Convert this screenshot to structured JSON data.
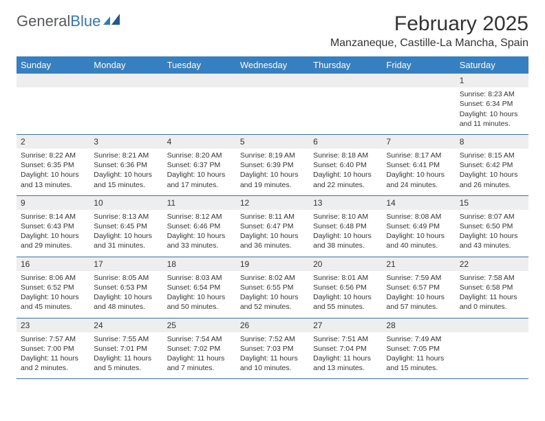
{
  "logo": {
    "word1": "General",
    "word2": "Blue"
  },
  "header": {
    "month_title": "February 2025",
    "location": "Manzaneque, Castille-La Mancha, Spain"
  },
  "colors": {
    "header_bg": "#3680c2",
    "header_text": "#ffffff",
    "daynum_bg": "#eeeeee",
    "row_border": "#3b6fa0",
    "body_text": "#333333",
    "logo_gray": "#56595c",
    "logo_blue": "#2f79bb"
  },
  "day_headers": [
    "Sunday",
    "Monday",
    "Tuesday",
    "Wednesday",
    "Thursday",
    "Friday",
    "Saturday"
  ],
  "labels": {
    "sunrise": "Sunrise:",
    "sunset": "Sunset:",
    "daylight": "Daylight:"
  },
  "weeks": [
    [
      {
        "empty": true
      },
      {
        "empty": true
      },
      {
        "empty": true
      },
      {
        "empty": true
      },
      {
        "empty": true
      },
      {
        "empty": true
      },
      {
        "num": "1",
        "sunrise": "8:23 AM",
        "sunset": "6:34 PM",
        "daylight": "10 hours and 11 minutes."
      }
    ],
    [
      {
        "num": "2",
        "sunrise": "8:22 AM",
        "sunset": "6:35 PM",
        "daylight": "10 hours and 13 minutes."
      },
      {
        "num": "3",
        "sunrise": "8:21 AM",
        "sunset": "6:36 PM",
        "daylight": "10 hours and 15 minutes."
      },
      {
        "num": "4",
        "sunrise": "8:20 AM",
        "sunset": "6:37 PM",
        "daylight": "10 hours and 17 minutes."
      },
      {
        "num": "5",
        "sunrise": "8:19 AM",
        "sunset": "6:39 PM",
        "daylight": "10 hours and 19 minutes."
      },
      {
        "num": "6",
        "sunrise": "8:18 AM",
        "sunset": "6:40 PM",
        "daylight": "10 hours and 22 minutes."
      },
      {
        "num": "7",
        "sunrise": "8:17 AM",
        "sunset": "6:41 PM",
        "daylight": "10 hours and 24 minutes."
      },
      {
        "num": "8",
        "sunrise": "8:15 AM",
        "sunset": "6:42 PM",
        "daylight": "10 hours and 26 minutes."
      }
    ],
    [
      {
        "num": "9",
        "sunrise": "8:14 AM",
        "sunset": "6:43 PM",
        "daylight": "10 hours and 29 minutes."
      },
      {
        "num": "10",
        "sunrise": "8:13 AM",
        "sunset": "6:45 PM",
        "daylight": "10 hours and 31 minutes."
      },
      {
        "num": "11",
        "sunrise": "8:12 AM",
        "sunset": "6:46 PM",
        "daylight": "10 hours and 33 minutes."
      },
      {
        "num": "12",
        "sunrise": "8:11 AM",
        "sunset": "6:47 PM",
        "daylight": "10 hours and 36 minutes."
      },
      {
        "num": "13",
        "sunrise": "8:10 AM",
        "sunset": "6:48 PM",
        "daylight": "10 hours and 38 minutes."
      },
      {
        "num": "14",
        "sunrise": "8:08 AM",
        "sunset": "6:49 PM",
        "daylight": "10 hours and 40 minutes."
      },
      {
        "num": "15",
        "sunrise": "8:07 AM",
        "sunset": "6:50 PM",
        "daylight": "10 hours and 43 minutes."
      }
    ],
    [
      {
        "num": "16",
        "sunrise": "8:06 AM",
        "sunset": "6:52 PM",
        "daylight": "10 hours and 45 minutes."
      },
      {
        "num": "17",
        "sunrise": "8:05 AM",
        "sunset": "6:53 PM",
        "daylight": "10 hours and 48 minutes."
      },
      {
        "num": "18",
        "sunrise": "8:03 AM",
        "sunset": "6:54 PM",
        "daylight": "10 hours and 50 minutes."
      },
      {
        "num": "19",
        "sunrise": "8:02 AM",
        "sunset": "6:55 PM",
        "daylight": "10 hours and 52 minutes."
      },
      {
        "num": "20",
        "sunrise": "8:01 AM",
        "sunset": "6:56 PM",
        "daylight": "10 hours and 55 minutes."
      },
      {
        "num": "21",
        "sunrise": "7:59 AM",
        "sunset": "6:57 PM",
        "daylight": "10 hours and 57 minutes."
      },
      {
        "num": "22",
        "sunrise": "7:58 AM",
        "sunset": "6:58 PM",
        "daylight": "11 hours and 0 minutes."
      }
    ],
    [
      {
        "num": "23",
        "sunrise": "7:57 AM",
        "sunset": "7:00 PM",
        "daylight": "11 hours and 2 minutes."
      },
      {
        "num": "24",
        "sunrise": "7:55 AM",
        "sunset": "7:01 PM",
        "daylight": "11 hours and 5 minutes."
      },
      {
        "num": "25",
        "sunrise": "7:54 AM",
        "sunset": "7:02 PM",
        "daylight": "11 hours and 7 minutes."
      },
      {
        "num": "26",
        "sunrise": "7:52 AM",
        "sunset": "7:03 PM",
        "daylight": "11 hours and 10 minutes."
      },
      {
        "num": "27",
        "sunrise": "7:51 AM",
        "sunset": "7:04 PM",
        "daylight": "11 hours and 13 minutes."
      },
      {
        "num": "28",
        "sunrise": "7:49 AM",
        "sunset": "7:05 PM",
        "daylight": "11 hours and 15 minutes."
      },
      {
        "empty": true
      }
    ]
  ]
}
